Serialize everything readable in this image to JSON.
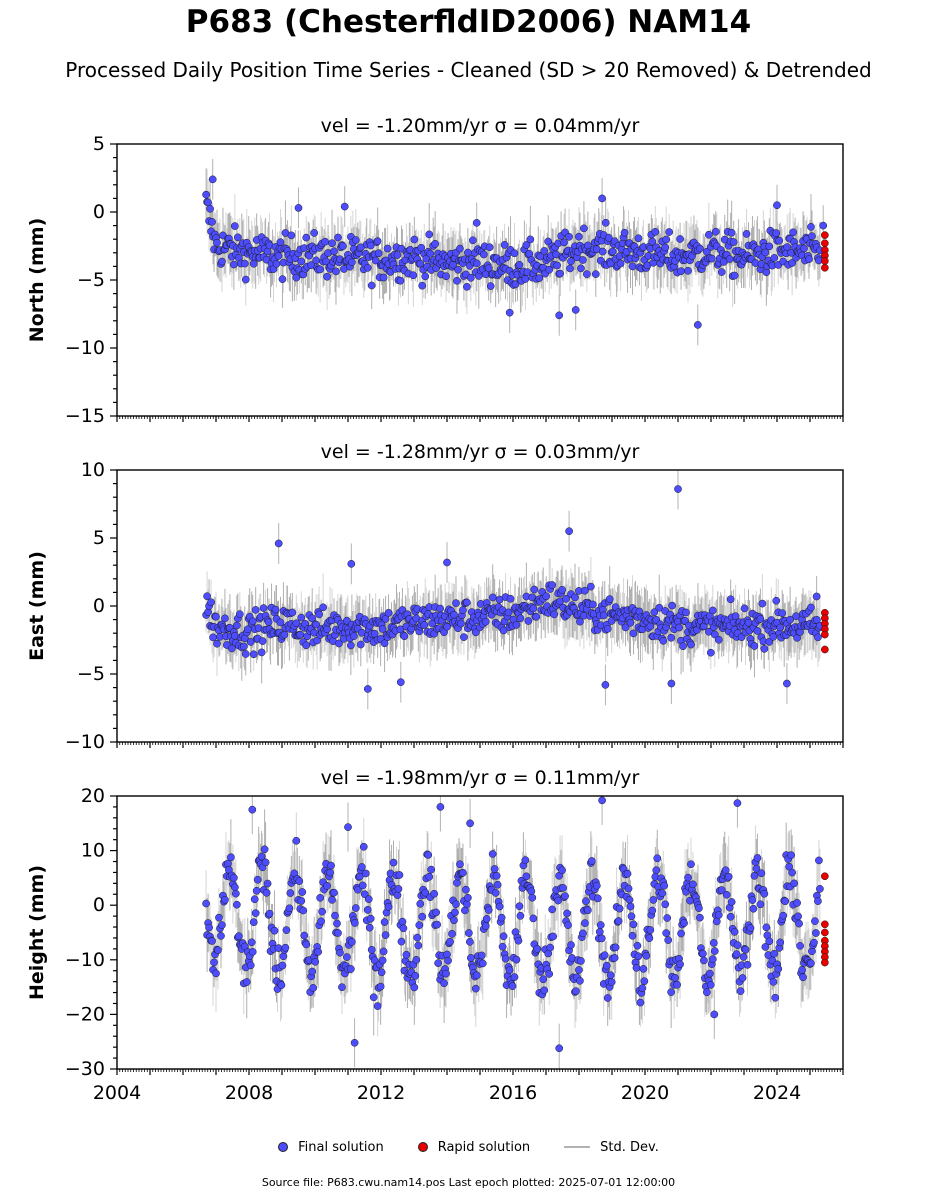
{
  "title": "P683 (ChesterfldID2006) NAM14",
  "subtitle": "Processed Daily Position Time Series - Cleaned (SD > 20 Removed) & Detrended",
  "legend": {
    "final_label": "Final solution",
    "rapid_label": "Rapid solution",
    "std_label": "Std. Dev."
  },
  "footer": "Source file: P683.cwu.nam14.pos  Last epoch plotted: 2025-07-01 12:00:00",
  "colors": {
    "final": "#4d4dff",
    "rapid": "#e60000",
    "std_dev": "#b3b3b3"
  },
  "chart_data": [
    {
      "type": "scatter",
      "panel": "north",
      "title": "vel = -1.20mm/yr   σ = 0.04mm/yr",
      "ylabel": "North (mm)",
      "xlim": [
        2004,
        2026
      ],
      "ylim": [
        -15,
        5
      ],
      "yticks": [
        5,
        0,
        -5,
        -10,
        -15
      ],
      "yticklabels": [
        "5",
        "0",
        "−5",
        "−10",
        "−15"
      ],
      "data_span": [
        2006.7,
        2025.5
      ],
      "series": [
        {
          "name": "Final solution",
          "x": [
            2006.7,
            2007.0,
            2008.0,
            2009.0,
            2010.0,
            2011.0,
            2012.0,
            2013.0,
            2014.0,
            2015.0,
            2016.0,
            2017.0,
            2018.0,
            2019.0,
            2020.0,
            2021.0,
            2022.0,
            2023.0,
            2024.0,
            2025.3
          ],
          "y": [
            0.5,
            -2.5,
            -3.0,
            -3.3,
            -3.2,
            -3.4,
            -3.5,
            -3.3,
            -3.8,
            -3.7,
            -4.0,
            -3.8,
            -2.6,
            -2.8,
            -3.0,
            -3.3,
            -2.9,
            -3.3,
            -2.9,
            -3.0
          ]
        },
        {
          "name": "Rapid solution",
          "x": [
            2025.45,
            2025.45,
            2025.45,
            2025.45,
            2025.45,
            2025.45
          ],
          "y": [
            -1.7,
            -2.3,
            -2.8,
            -3.2,
            -3.6,
            -4.1
          ]
        }
      ],
      "outliers": {
        "x": [
          2006.9,
          2009.5,
          2010.9,
          2014.9,
          2015.9,
          2017.4,
          2017.9,
          2018.7,
          2021.6,
          2024.0,
          2025.4
        ],
        "y": [
          2.4,
          0.3,
          0.4,
          -0.8,
          -7.4,
          -7.6,
          -7.2,
          1.0,
          -8.3,
          0.5,
          -1.0
        ]
      }
    },
    {
      "type": "scatter",
      "panel": "east",
      "title": "vel = -1.28mm/yr   σ = 0.03mm/yr",
      "ylabel": "East (mm)",
      "xlim": [
        2004,
        2026
      ],
      "ylim": [
        -10,
        10
      ],
      "yticks": [
        10,
        5,
        0,
        -5,
        -10
      ],
      "yticklabels": [
        "10",
        "5",
        "0",
        "−5",
        "−10"
      ],
      "data_span": [
        2006.7,
        2025.5
      ],
      "series": [
        {
          "name": "Final solution",
          "x": [
            2006.7,
            2007.0,
            2008.0,
            2009.0,
            2010.0,
            2011.0,
            2012.0,
            2013.0,
            2014.0,
            2015.0,
            2016.0,
            2017.0,
            2018.0,
            2019.0,
            2020.0,
            2021.0,
            2022.0,
            2023.0,
            2024.0,
            2025.3
          ],
          "y": [
            0.0,
            -1.6,
            -1.9,
            -1.3,
            -1.7,
            -1.5,
            -1.6,
            -1.2,
            -1.0,
            -0.8,
            -0.6,
            0.5,
            -0.2,
            -0.7,
            -0.9,
            -1.4,
            -1.6,
            -1.5,
            -1.3,
            -1.6
          ]
        },
        {
          "name": "Rapid solution",
          "x": [
            2025.45,
            2025.45,
            2025.45,
            2025.45,
            2025.45,
            2025.45
          ],
          "y": [
            -0.5,
            -0.9,
            -1.3,
            -1.7,
            -2.1,
            -3.2
          ]
        }
      ],
      "outliers": {
        "x": [
          2008.9,
          2011.1,
          2011.6,
          2012.6,
          2014.0,
          2017.7,
          2018.8,
          2020.8,
          2021.0,
          2024.3,
          2025.2
        ],
        "y": [
          4.6,
          3.1,
          -6.1,
          -5.6,
          3.2,
          5.5,
          -5.8,
          -5.7,
          8.6,
          -5.7,
          0.7
        ]
      }
    },
    {
      "type": "scatter",
      "panel": "height",
      "title": "vel = -1.98mm/yr   σ = 0.11mm/yr",
      "ylabel": "Height (mm)",
      "xlim": [
        2004,
        2026
      ],
      "ylim": [
        -30,
        20
      ],
      "yticks": [
        20,
        10,
        0,
        -10,
        -20,
        -30
      ],
      "yticklabels": [
        "20",
        "10",
        "0",
        "−10",
        "−20",
        "−30"
      ],
      "xticks": [
        2004,
        2008,
        2012,
        2016,
        2020,
        2024
      ],
      "xticklabels": [
        "2004",
        "2008",
        "2012",
        "2016",
        "2020",
        "2024"
      ],
      "data_span": [
        2006.7,
        2025.5
      ],
      "seasonal_amplitude": 11,
      "series": [
        {
          "name": "Final solution",
          "x": [
            2006.7,
            2007.0,
            2008.0,
            2009.0,
            2010.0,
            2011.0,
            2012.0,
            2013.0,
            2014.0,
            2015.0,
            2016.0,
            2017.0,
            2018.0,
            2019.0,
            2020.0,
            2021.0,
            2022.0,
            2023.0,
            2024.0,
            2025.3
          ],
          "y": [
            2.0,
            -3.0,
            -2.5,
            -3.0,
            -3.5,
            -4.0,
            -4.0,
            -3.5,
            -3.5,
            -4.0,
            -4.0,
            -4.5,
            -4.5,
            -4.5,
            -4.0,
            -4.0,
            -3.5,
            -3.0,
            -3.5,
            -4.0
          ]
        },
        {
          "name": "Rapid solution",
          "x": [
            2025.45,
            2025.45,
            2025.45,
            2025.45,
            2025.45,
            2025.45,
            2025.45,
            2025.45
          ],
          "y": [
            5.3,
            -3.5,
            -5.0,
            -6.5,
            -7.5,
            -8.5,
            -9.5,
            -10.5
          ]
        }
      ],
      "outliers": {
        "x": [
          2008.1,
          2011.0,
          2013.8,
          2014.7,
          2017.4,
          2018.7,
          2022.8,
          2011.2,
          2022.1
        ],
        "y": [
          17.5,
          14.3,
          18.0,
          15.0,
          -26.2,
          19.2,
          18.7,
          -25.2,
          -20.0
        ]
      }
    }
  ]
}
